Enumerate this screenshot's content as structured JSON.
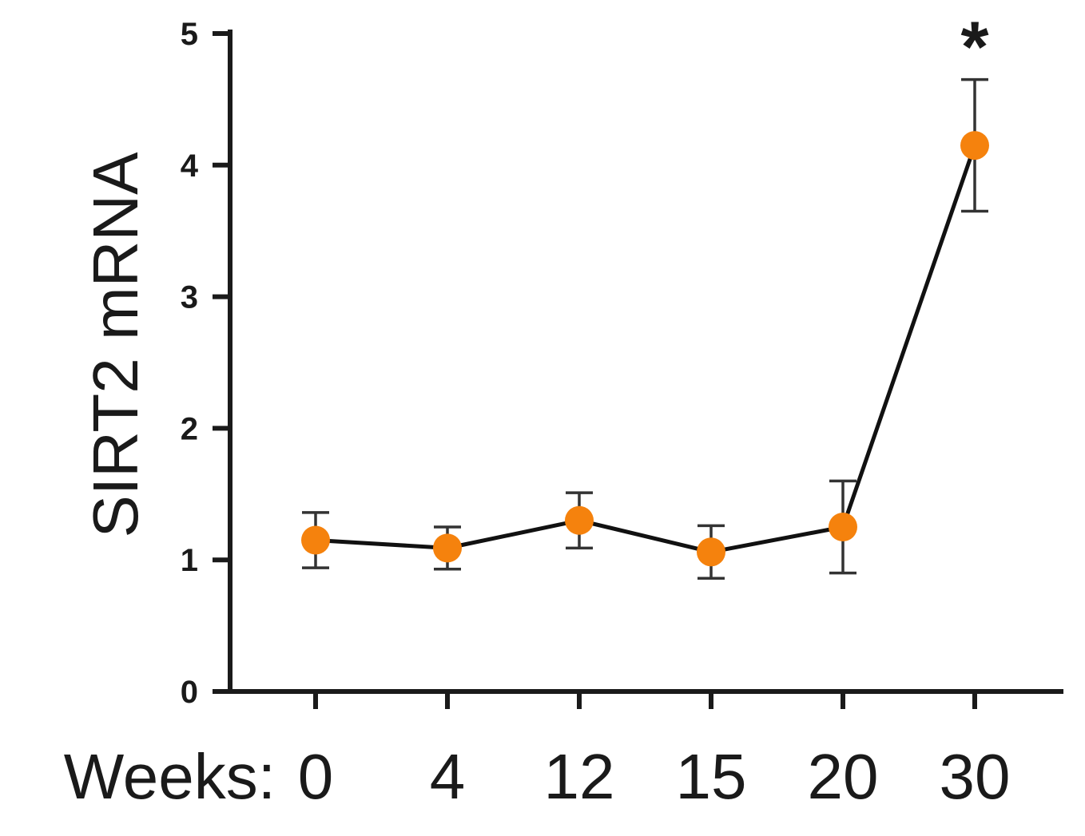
{
  "chart_data": {
    "type": "line",
    "x_prefix": "Weeks:",
    "categories": [
      "0",
      "4",
      "12",
      "15",
      "20",
      "30"
    ],
    "series": [
      {
        "values": [
          1.15,
          1.09,
          1.3,
          1.06,
          1.25,
          4.15
        ],
        "errors": [
          0.21,
          0.16,
          0.21,
          0.2,
          0.35,
          0.5
        ],
        "color": "#f5820d"
      }
    ],
    "ylabel": "SIRT2 mRNA",
    "xlabel": "",
    "ylim": [
      0,
      5
    ],
    "yticks": [
      "0",
      "1",
      "2",
      "3",
      "4",
      "5"
    ],
    "annotations": [
      {
        "category": "30",
        "text": "*"
      }
    ],
    "grid": false
  }
}
